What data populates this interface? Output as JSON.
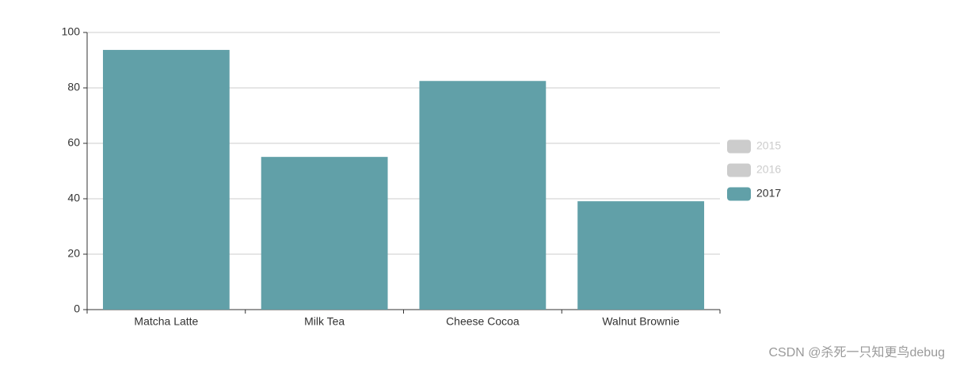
{
  "chart_data": {
    "type": "bar",
    "categories": [
      "Matcha Latte",
      "Milk Tea",
      "Cheese Cocoa",
      "Walnut Brownie"
    ],
    "series": [
      {
        "name": "2015",
        "visible": false
      },
      {
        "name": "2016",
        "visible": false
      },
      {
        "name": "2017",
        "color": "#61a0a8",
        "visible": true,
        "values": [
          93.7,
          55.1,
          82.5,
          39.1
        ]
      }
    ],
    "legend_inactive_color": "#cccccc",
    "legend_position": "right",
    "ylim": [
      0,
      100
    ],
    "yticks": [
      0,
      20,
      40,
      60,
      80,
      100
    ],
    "grid": true
  },
  "watermark": "CSDN @杀死一只知更鸟debug"
}
